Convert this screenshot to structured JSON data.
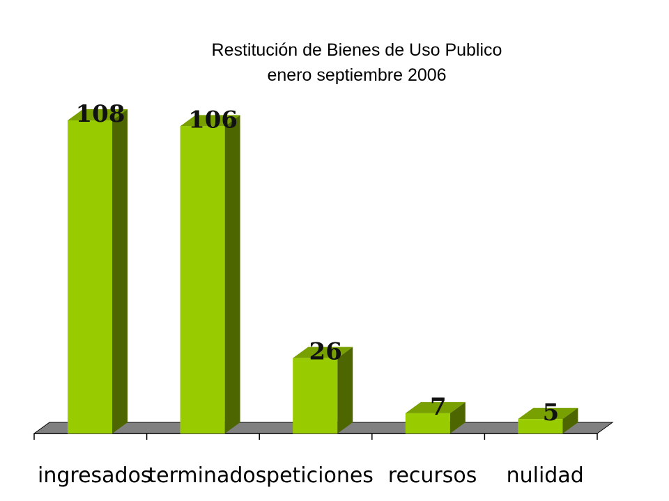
{
  "chart_data": {
    "type": "bar",
    "title": "Restitución de Bienes de Uso Publico",
    "subtitle": "enero septiembre 2006",
    "categories": [
      "ingresados",
      "terminados",
      "peticiones",
      "recursos",
      "nulidad"
    ],
    "values": [
      108,
      106,
      26,
      7,
      5
    ],
    "xlabel": "",
    "ylabel": "",
    "ylim": [
      0,
      108
    ],
    "grid": false,
    "legend": "none",
    "three_d": true,
    "colors": {
      "bar_front": "#99cc00",
      "bar_side": "#4d6600",
      "bar_top": "#77a000",
      "floor": "#808080",
      "axis": "#000000"
    }
  }
}
